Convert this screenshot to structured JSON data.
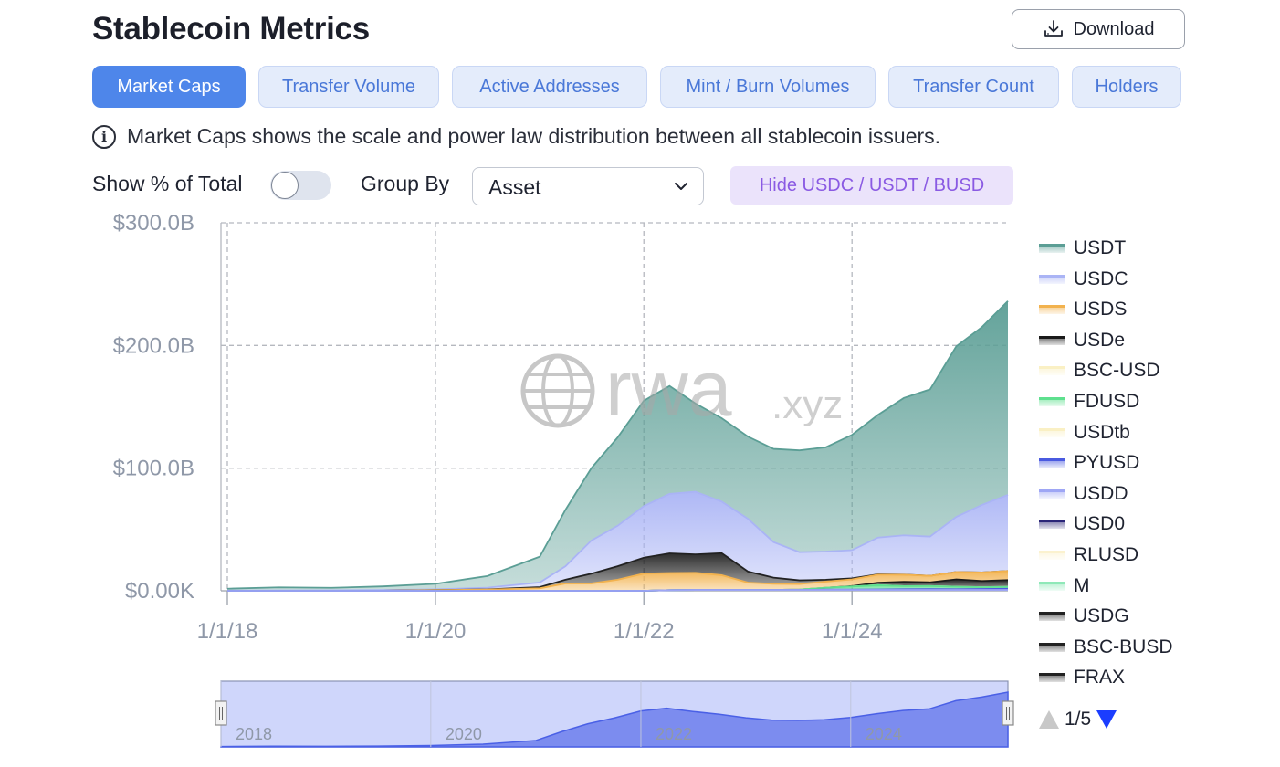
{
  "header": {
    "title": "Stablecoin Metrics",
    "download_label": "Download"
  },
  "tabs": [
    {
      "label": "Market Caps",
      "active": true
    },
    {
      "label": "Transfer Volume",
      "active": false
    },
    {
      "label": "Active Addresses",
      "active": false
    },
    {
      "label": "Mint / Burn Volumes",
      "active": false
    },
    {
      "label": "Transfer Count",
      "active": false
    },
    {
      "label": "Holders",
      "active": false
    }
  ],
  "info": {
    "text": "Market Caps shows the scale and power law distribution between all stablecoin issuers."
  },
  "controls": {
    "show_total_label": "Show % of Total",
    "show_total_on": false,
    "group_by_label": "Group By",
    "group_by_value": "Asset",
    "hide_button_label": "Hide USDC / USDT / BUSD"
  },
  "watermark": {
    "main": "rwa",
    "suffix": ".xyz"
  },
  "chart_data": {
    "type": "area",
    "stacked": true,
    "x": [
      "2018-01",
      "2018-07",
      "2019-01",
      "2019-07",
      "2020-01",
      "2020-07",
      "2021-01",
      "2021-04",
      "2021-07",
      "2021-10",
      "2022-01",
      "2022-04",
      "2022-07",
      "2022-10",
      "2023-01",
      "2023-04",
      "2023-07",
      "2023-10",
      "2024-01",
      "2024-04",
      "2024-07",
      "2024-10",
      "2025-01",
      "2025-04",
      "2025-07"
    ],
    "series": [
      {
        "name": "USDD",
        "color": "#9ea6f5",
        "values": [
          0,
          0,
          0,
          0,
          0,
          0,
          0,
          0,
          0,
          0,
          0,
          0.5,
          0.7,
          0.7,
          0.7,
          0.7,
          0.7,
          0.7,
          0.7,
          0.7,
          0.7,
          0.7,
          0.7,
          0.7,
          0.7
        ]
      },
      {
        "name": "PYUSD",
        "color": "#4a5ae0",
        "values": [
          0,
          0,
          0,
          0,
          0,
          0,
          0,
          0,
          0,
          0,
          0,
          0,
          0,
          0,
          0,
          0,
          0,
          0.3,
          0.3,
          0.4,
          0.6,
          0.7,
          0.6,
          0.8,
          1.0
        ]
      },
      {
        "name": "FDUSD",
        "color": "#5ee08e",
        "values": [
          0,
          0,
          0,
          0,
          0,
          0,
          0,
          0,
          0,
          0,
          0,
          0,
          0,
          0,
          0,
          0,
          0.3,
          1.5,
          2.5,
          3.5,
          2.5,
          2.5,
          2.0,
          1.5,
          1.5
        ]
      },
      {
        "name": "BSC-USD",
        "color": "#faf0c4",
        "values": [
          0,
          0,
          0,
          0,
          0,
          0,
          0,
          0,
          0,
          0,
          0,
          0,
          0,
          0,
          0,
          0,
          0,
          0,
          0,
          0,
          0,
          0,
          0,
          0,
          0
        ]
      },
      {
        "name": "USDe",
        "color": "#1a1a1a",
        "values": [
          0,
          0,
          0,
          0,
          0,
          0,
          0,
          0,
          0,
          0,
          0,
          0,
          0,
          0,
          0,
          0,
          0,
          0,
          0.3,
          2.0,
          3.5,
          3.0,
          6.0,
          5.0,
          5.5
        ]
      },
      {
        "name": "USDS",
        "color": "#f2b24e",
        "values": [
          0.1,
          0.1,
          0.1,
          0.1,
          0.5,
          1.0,
          2.0,
          6.0,
          6.0,
          9.0,
          14.0,
          14.0,
          14.0,
          12.0,
          6.0,
          5.0,
          4.5,
          5.0,
          5.5,
          6.5,
          5.8,
          5.3,
          6.0,
          7.0,
          7.5
        ]
      },
      {
        "name": "BSC-BUSD",
        "color": "#222222",
        "values": [
          0,
          0,
          0,
          0,
          0.1,
          0.2,
          1.0,
          3.0,
          8.0,
          11.0,
          13.0,
          16.0,
          15.0,
          18.0,
          9.0,
          5.0,
          3.0,
          1.5,
          0.8,
          0.3,
          0.1,
          0,
          0,
          0,
          0
        ]
      },
      {
        "name": "USDC",
        "color": "#aab4f5",
        "values": [
          0.1,
          0.2,
          0.3,
          0.5,
          0.6,
          1.3,
          3.8,
          11.0,
          27.0,
          33.0,
          42.0,
          48.5,
          51.0,
          42.0,
          43.0,
          29.0,
          23.0,
          23.0,
          23.0,
          30.0,
          32.0,
          32.0,
          45.0,
          55.0,
          62.0
        ]
      },
      {
        "name": "USDT",
        "color": "#5b9e95",
        "values": [
          1.5,
          2.5,
          2.0,
          3.0,
          4.5,
          9.5,
          21.0,
          46.0,
          59.0,
          72.0,
          86.0,
          88.0,
          72.0,
          68.0,
          67.0,
          76.0,
          83.0,
          85.0,
          94.0,
          100.0,
          112.0,
          120.0,
          139.0,
          145.0,
          158.0
        ]
      }
    ],
    "legend": [
      "USDT",
      "USDC",
      "USDS",
      "USDe",
      "BSC-USD",
      "FDUSD",
      "USDtb",
      "PYUSD",
      "USDD",
      "USD0",
      "RLUSD",
      "M",
      "USDG",
      "BSC-BUSD",
      "FRAX"
    ],
    "legend_colors": [
      "#5b9e95",
      "#aab4f5",
      "#f2b24e",
      "#1a1a1a",
      "#faf0c4",
      "#5ee08e",
      "#faf0c4",
      "#4a5ae0",
      "#9ea6f5",
      "#2a2578",
      "#fbf2cf",
      "#8fe8b8",
      "#222222",
      "#222222",
      "#222222"
    ],
    "legend_page": "1/5",
    "y_ticks": [
      "$300.0B",
      "$200.0B",
      "$100.0B",
      "$0.00K"
    ],
    "y_tick_values": [
      300,
      200,
      100,
      0
    ],
    "ylim": [
      0,
      300
    ],
    "x_ticks": [
      "1/1/18",
      "1/1/20",
      "1/1/22",
      "1/1/24"
    ],
    "navigator_ticks": [
      "2018",
      "2020",
      "2022",
      "2024"
    ],
    "grid": true,
    "legend_position": "right"
  }
}
